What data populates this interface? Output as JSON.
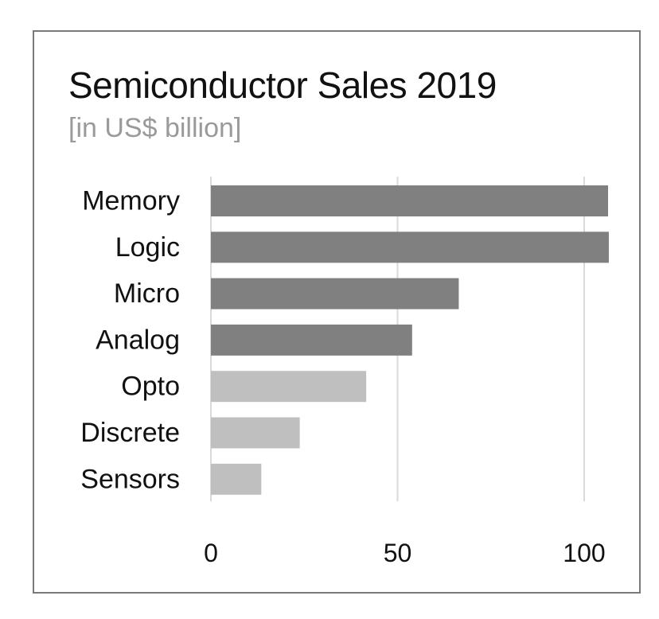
{
  "chart_data": {
    "type": "bar",
    "orientation": "horizontal",
    "title": "Semiconductor Sales 2019",
    "subtitle": "[in US$ billion]",
    "categories": [
      "Memory",
      "Logic",
      "Micro",
      "Analog",
      "Opto",
      "Discrete",
      "Sensors"
    ],
    "values": [
      106.4,
      106.6,
      66.4,
      53.9,
      41.6,
      23.8,
      13.5
    ],
    "xlim": [
      0,
      110
    ],
    "xticks": [
      0,
      50,
      100
    ],
    "grid": true,
    "colors": {
      "dark_bar": "#808080",
      "light_bar": "#bfbfbf",
      "gridline": "#d9d9d9"
    },
    "bar_shades": [
      "dark",
      "dark",
      "dark",
      "dark",
      "light",
      "light",
      "light"
    ]
  }
}
